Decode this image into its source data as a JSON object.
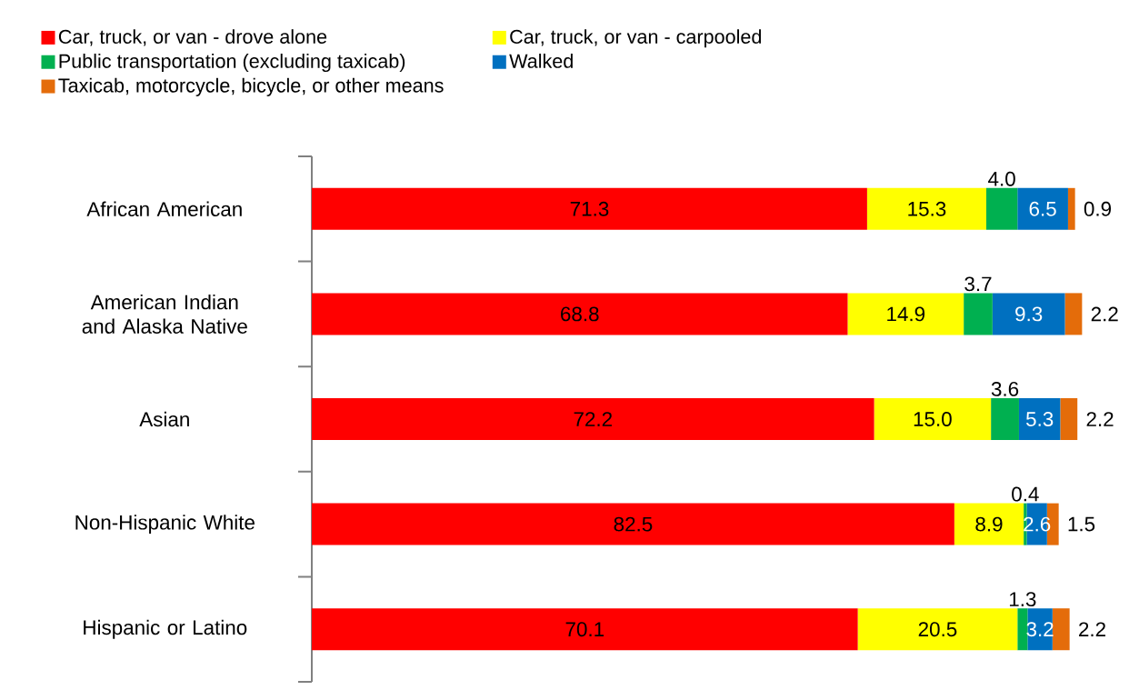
{
  "chart_data": {
    "type": "bar",
    "orientation": "horizontal",
    "stacked": true,
    "legend": "top",
    "grid": false,
    "categories": [
      "African American",
      "American Indian and Alaska Native",
      "Asian",
      "Non-Hispanic White",
      "Hispanic or Latino"
    ],
    "series": [
      {
        "name": "Car, truck, or van - drove alone",
        "color": "#ff0000",
        "values": [
          71.3,
          68.8,
          72.2,
          82.5,
          70.1
        ],
        "value_labels": [
          "71.3",
          "68.8",
          "72.2",
          "82.5",
          "70.1"
        ]
      },
      {
        "name": "Car, truck, or van - carpooled",
        "color": "#ffff00",
        "values": [
          15.3,
          14.9,
          15.0,
          8.9,
          20.5
        ],
        "value_labels": [
          "15.3",
          "14.9",
          "15.0",
          "8.9",
          "20.5"
        ]
      },
      {
        "name": "Public transportation (excluding taxicab)",
        "color": "#00b050",
        "values": [
          4.0,
          3.7,
          3.6,
          0.4,
          1.3
        ],
        "value_labels": [
          "4.0",
          "3.7",
          "3.6",
          "0.4",
          "1.3"
        ]
      },
      {
        "name": "Walked",
        "color": "#0070c0",
        "values": [
          6.5,
          9.3,
          5.3,
          2.6,
          3.2
        ],
        "value_labels": [
          "6.5",
          "9.3",
          "5.3",
          "2.6",
          "3.2"
        ]
      },
      {
        "name": "Taxicab, motorcycle, bicycle, or other means",
        "color": "#e46c0a",
        "values": [
          0.9,
          2.2,
          2.2,
          1.5,
          2.2
        ],
        "value_labels": [
          "0.9",
          "2.2",
          "2.2",
          "1.5",
          "2.2"
        ]
      }
    ]
  }
}
